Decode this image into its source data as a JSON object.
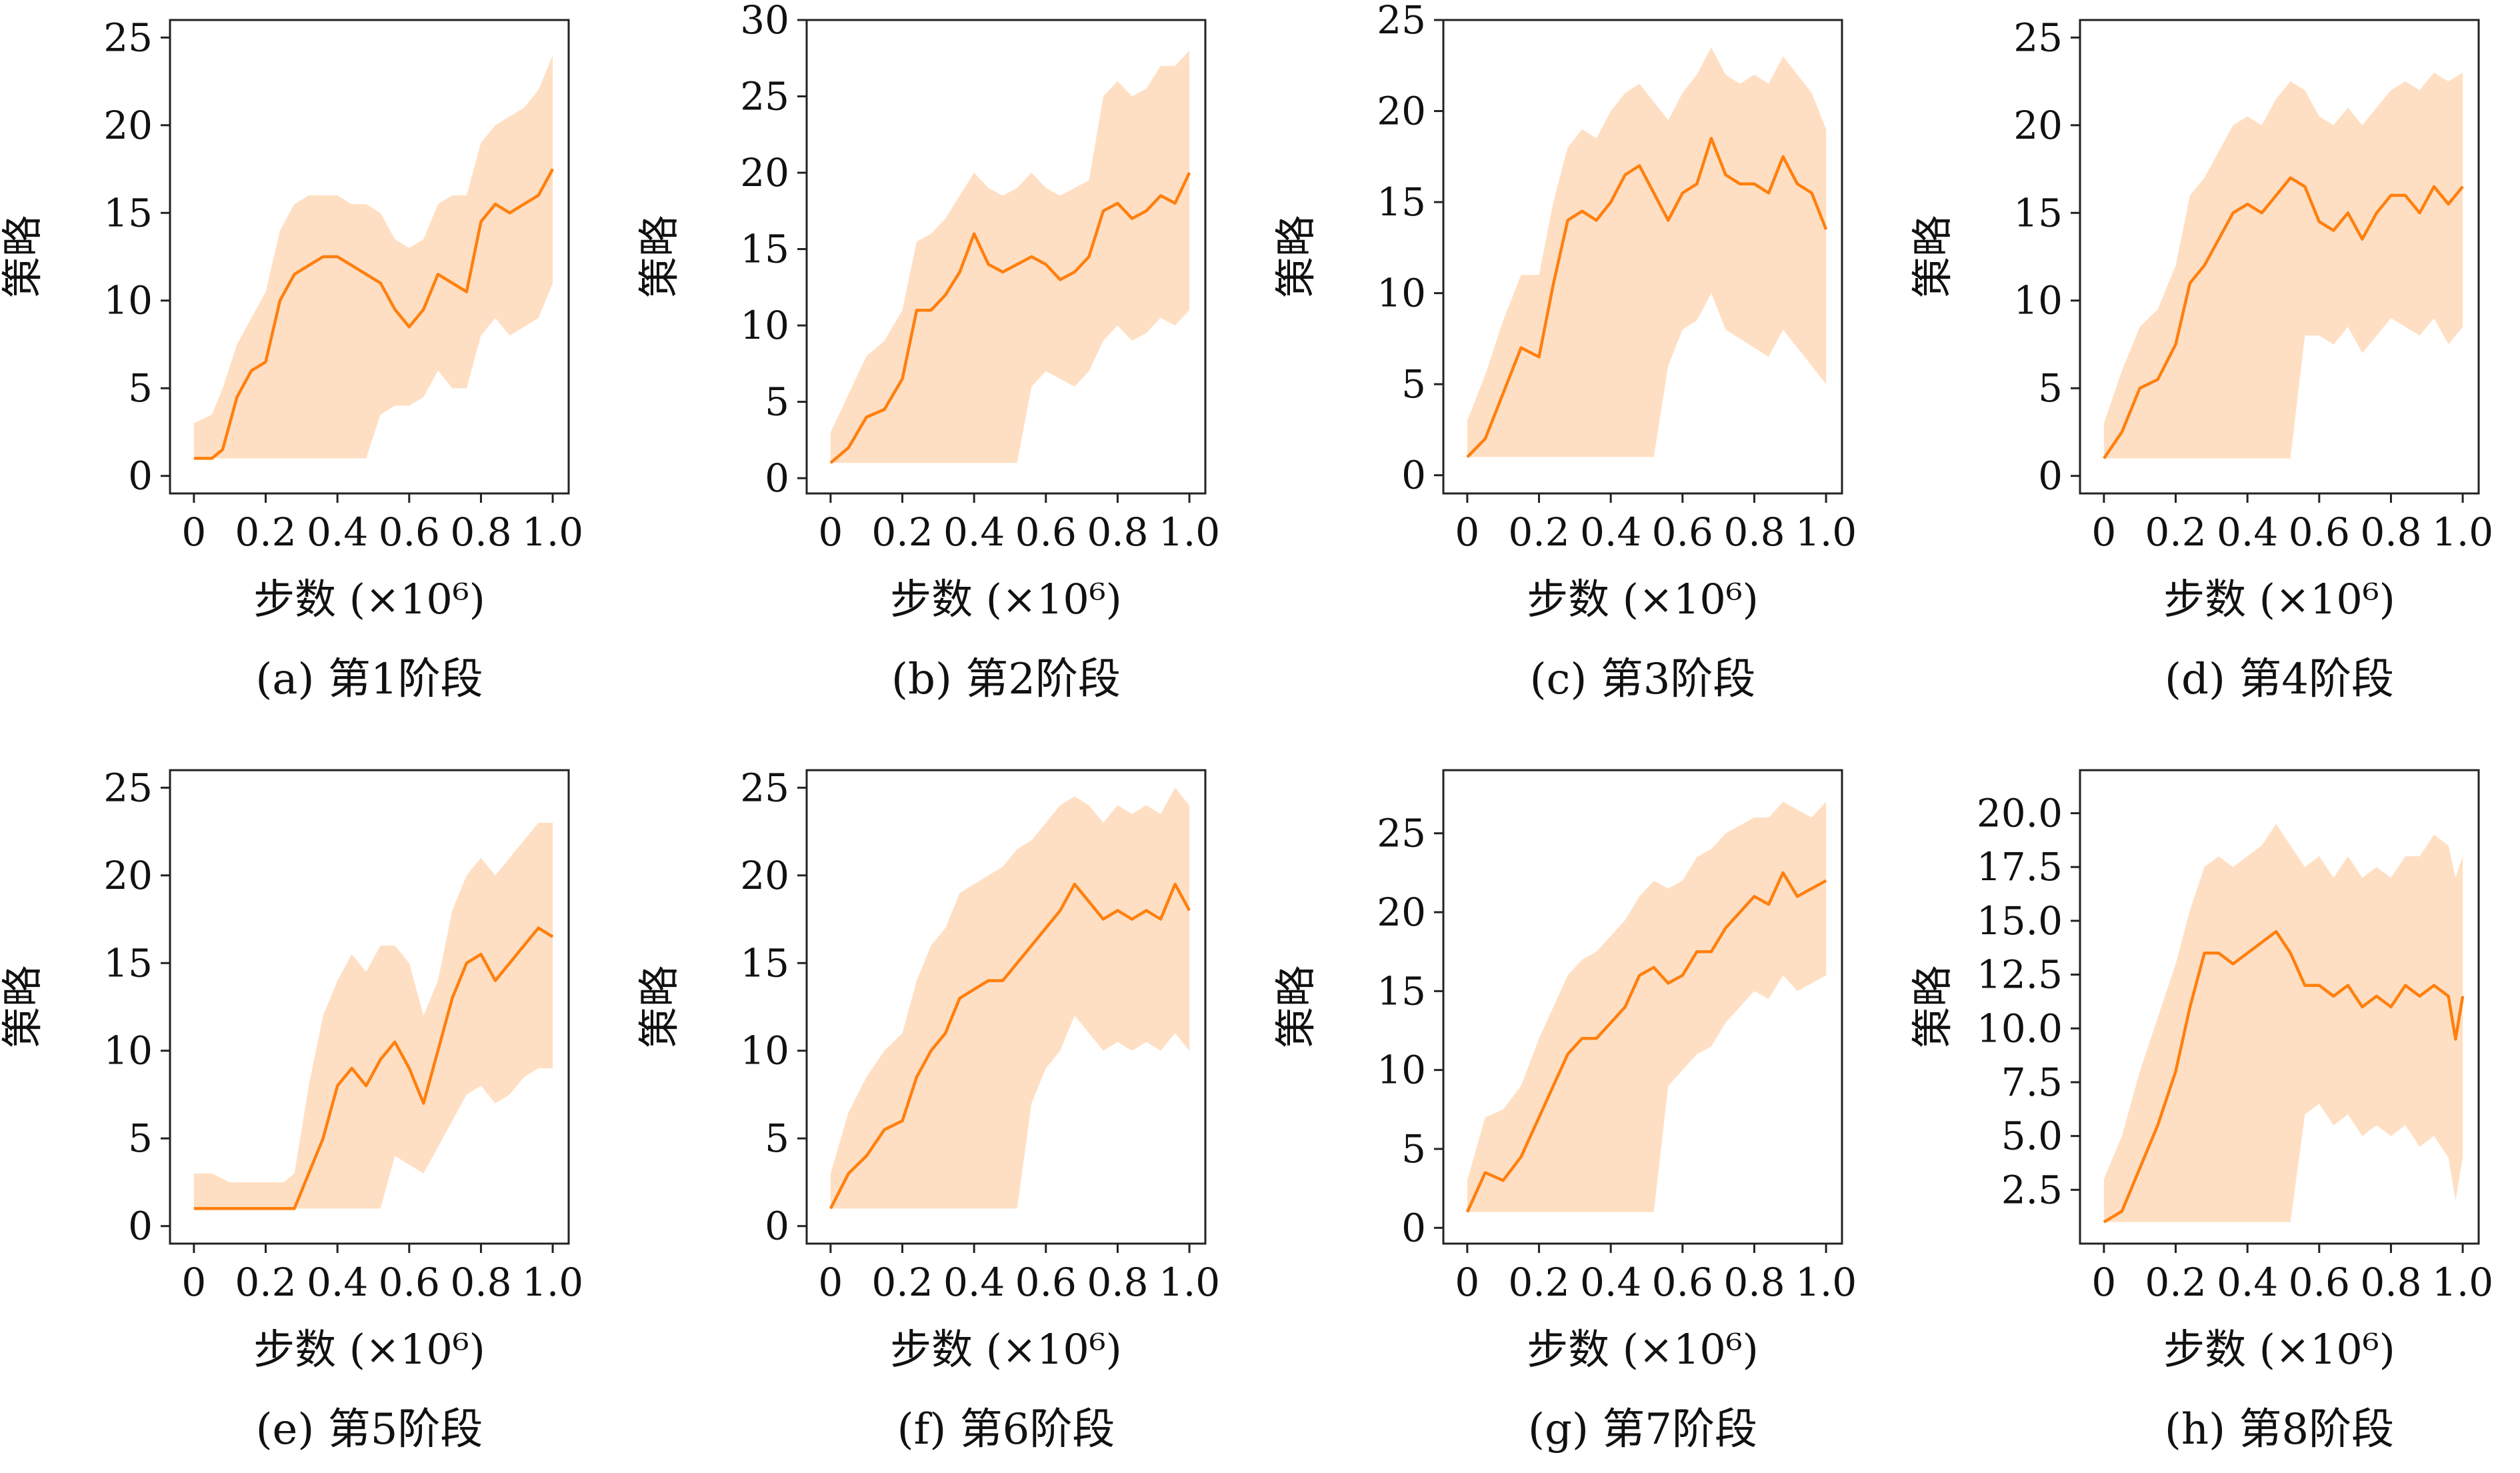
{
  "figure": {
    "accent_color": "#ff7f0e",
    "band_color": "#ffd9b8",
    "panels_per_row": 4
  },
  "chart_data": [
    {
      "type": "line",
      "caption": "(a) 第1阶段",
      "xlabel": "步数 (×10⁶)",
      "ylabel": "策略",
      "xlim": [
        0,
        1.0
      ],
      "ylim": [
        -1,
        26
      ],
      "xticks": [
        "0",
        "0.2",
        "0.4",
        "0.6",
        "0.8",
        "1.0"
      ],
      "yticks": [
        "0",
        "5",
        "10",
        "15",
        "20",
        "25"
      ],
      "series": [
        {
          "x": [
            0,
            0.05,
            0.08,
            0.12,
            0.16,
            0.2,
            0.24,
            0.28,
            0.32,
            0.36,
            0.4,
            0.44,
            0.48,
            0.52,
            0.56,
            0.6,
            0.64,
            0.68,
            0.72,
            0.76,
            0.8,
            0.84,
            0.88,
            0.92,
            0.96,
            1.0
          ],
          "mean": [
            1,
            1,
            1.5,
            4.5,
            6,
            6.5,
            10,
            11.5,
            12,
            12.5,
            12.5,
            12,
            11.5,
            11,
            9.5,
            8.5,
            9.5,
            11.5,
            11,
            10.5,
            14.5,
            15.5,
            15,
            15.5,
            16,
            17.5
          ],
          "upper": [
            3,
            3.5,
            5,
            7.5,
            9,
            10.5,
            14,
            15.5,
            16,
            16,
            16,
            15.5,
            15.5,
            15,
            13.5,
            13,
            13.5,
            15.5,
            16,
            16,
            19,
            20,
            20.5,
            21,
            22,
            24
          ],
          "lower": [
            1,
            1,
            1,
            1,
            1,
            1,
            1,
            1,
            1,
            1,
            1,
            1,
            1,
            3.5,
            4,
            4,
            4.5,
            6,
            5,
            5,
            8,
            9,
            8,
            8.5,
            9,
            11
          ]
        }
      ]
    },
    {
      "type": "line",
      "caption": "(b) 第2阶段",
      "xlabel": "步数 (×10⁶)",
      "ylabel": "策略",
      "xlim": [
        0,
        1.0
      ],
      "ylim": [
        -1,
        30
      ],
      "xticks": [
        "0",
        "0.2",
        "0.4",
        "0.6",
        "0.8",
        "1.0"
      ],
      "yticks": [
        "0",
        "5",
        "10",
        "15",
        "20",
        "25",
        "30"
      ],
      "series": [
        {
          "x": [
            0,
            0.05,
            0.1,
            0.15,
            0.2,
            0.24,
            0.28,
            0.32,
            0.36,
            0.4,
            0.44,
            0.48,
            0.52,
            0.56,
            0.6,
            0.64,
            0.68,
            0.72,
            0.76,
            0.8,
            0.84,
            0.88,
            0.92,
            0.96,
            1.0
          ],
          "mean": [
            1,
            2,
            4,
            4.5,
            6.5,
            11,
            11,
            12,
            13.5,
            16,
            14,
            13.5,
            14,
            14.5,
            14,
            13,
            13.5,
            14.5,
            17.5,
            18,
            17,
            17.5,
            18.5,
            18,
            20
          ],
          "upper": [
            3,
            5.5,
            8,
            9,
            11,
            15.5,
            16,
            17,
            18.5,
            20,
            19,
            18.5,
            19,
            20,
            19,
            18.5,
            19,
            19.5,
            25,
            26,
            25,
            25.5,
            27,
            27,
            28
          ],
          "lower": [
            1,
            1,
            1,
            1,
            1,
            1,
            1,
            1,
            1,
            1,
            1,
            1,
            1,
            6,
            7,
            6.5,
            6,
            7,
            9,
            10,
            9,
            9.5,
            10.5,
            10,
            11
          ]
        }
      ]
    },
    {
      "type": "line",
      "caption": "(c) 第3阶段",
      "xlabel": "步数 (×10⁶)",
      "ylabel": "策略",
      "xlim": [
        0,
        1.0
      ],
      "ylim": [
        -1,
        25
      ],
      "xticks": [
        "0",
        "0.2",
        "0.4",
        "0.6",
        "0.8",
        "1.0"
      ],
      "yticks": [
        "0",
        "5",
        "10",
        "15",
        "20",
        "25"
      ],
      "series": [
        {
          "x": [
            0,
            0.05,
            0.1,
            0.15,
            0.2,
            0.24,
            0.28,
            0.32,
            0.36,
            0.4,
            0.44,
            0.48,
            0.52,
            0.56,
            0.6,
            0.64,
            0.68,
            0.72,
            0.76,
            0.8,
            0.84,
            0.88,
            0.92,
            0.96,
            1.0
          ],
          "mean": [
            1,
            2,
            4.5,
            7,
            6.5,
            10.5,
            14,
            14.5,
            14,
            15,
            16.5,
            17,
            15.5,
            14,
            15.5,
            16,
            18.5,
            16.5,
            16,
            16,
            15.5,
            17.5,
            16,
            15.5,
            13.5
          ],
          "upper": [
            3,
            5.5,
            8.5,
            11,
            11,
            15,
            18,
            19,
            18.5,
            20,
            21,
            21.5,
            20.5,
            19.5,
            21,
            22,
            23.5,
            22,
            21.5,
            22,
            21.5,
            23,
            22,
            21,
            19
          ],
          "lower": [
            1,
            1,
            1,
            1,
            1,
            1,
            1,
            1,
            1,
            1,
            1,
            1,
            1,
            6,
            8,
            8.5,
            10,
            8,
            7.5,
            7,
            6.5,
            8,
            7,
            6,
            5
          ]
        }
      ]
    },
    {
      "type": "line",
      "caption": "(d) 第4阶段",
      "xlabel": "步数 (×10⁶)",
      "ylabel": "策略",
      "xlim": [
        0,
        1.0
      ],
      "ylim": [
        -1,
        26
      ],
      "xticks": [
        "0",
        "0.2",
        "0.4",
        "0.6",
        "0.8",
        "1.0"
      ],
      "yticks": [
        "0",
        "5",
        "10",
        "15",
        "20",
        "25"
      ],
      "series": [
        {
          "x": [
            0,
            0.05,
            0.1,
            0.15,
            0.2,
            0.24,
            0.28,
            0.32,
            0.36,
            0.4,
            0.44,
            0.48,
            0.52,
            0.56,
            0.6,
            0.64,
            0.68,
            0.72,
            0.76,
            0.8,
            0.84,
            0.88,
            0.92,
            0.96,
            1.0
          ],
          "mean": [
            1,
            2.5,
            5,
            5.5,
            7.5,
            11,
            12,
            13.5,
            15,
            15.5,
            15,
            16,
            17,
            16.5,
            14.5,
            14,
            15,
            13.5,
            15,
            16,
            16,
            15,
            16.5,
            15.5,
            16.5
          ],
          "upper": [
            3,
            6,
            8.5,
            9.5,
            12,
            16,
            17,
            18.5,
            20,
            20.5,
            20,
            21.5,
            22.5,
            22,
            20.5,
            20,
            21,
            20,
            21,
            22,
            22.5,
            22,
            23,
            22.5,
            23
          ],
          "lower": [
            1,
            1,
            1,
            1,
            1,
            1,
            1,
            1,
            1,
            1,
            1,
            1,
            1,
            8,
            8,
            7.5,
            8.5,
            7,
            8,
            9,
            8.5,
            8,
            9,
            7.5,
            8.5
          ]
        }
      ]
    },
    {
      "type": "line",
      "caption": "(e) 第5阶段",
      "xlabel": "步数 (×10⁶)",
      "ylabel": "策略",
      "xlim": [
        0,
        1.0
      ],
      "ylim": [
        -1,
        26
      ],
      "xticks": [
        "0",
        "0.2",
        "0.4",
        "0.6",
        "0.8",
        "1.0"
      ],
      "yticks": [
        "0",
        "5",
        "10",
        "15",
        "20",
        "25"
      ],
      "series": [
        {
          "x": [
            0,
            0.05,
            0.1,
            0.15,
            0.2,
            0.25,
            0.28,
            0.32,
            0.36,
            0.4,
            0.44,
            0.48,
            0.52,
            0.56,
            0.6,
            0.64,
            0.68,
            0.72,
            0.76,
            0.8,
            0.84,
            0.88,
            0.92,
            0.96,
            1.0
          ],
          "mean": [
            1,
            1,
            1,
            1,
            1,
            1,
            1,
            3,
            5,
            8,
            9,
            8,
            9.5,
            10.5,
            9,
            7,
            10,
            13,
            15,
            15.5,
            14,
            15,
            16,
            17,
            16.5
          ],
          "upper": [
            3,
            3,
            2.5,
            2.5,
            2.5,
            2.5,
            3,
            8,
            12,
            14,
            15.5,
            14.5,
            16,
            16,
            15,
            12,
            14,
            18,
            20,
            21,
            20,
            21,
            22,
            23,
            23
          ],
          "lower": [
            1,
            1,
            1,
            1,
            1,
            1,
            1,
            1,
            1,
            1,
            1,
            1,
            1,
            4,
            3.5,
            3,
            4.5,
            6,
            7.5,
            8,
            7,
            7.5,
            8.5,
            9,
            9
          ]
        }
      ]
    },
    {
      "type": "line",
      "caption": "(f) 第6阶段",
      "xlabel": "步数 (×10⁶)",
      "ylabel": "策略",
      "xlim": [
        0,
        1.0
      ],
      "ylim": [
        -1,
        26
      ],
      "xticks": [
        "0",
        "0.2",
        "0.4",
        "0.6",
        "0.8",
        "1.0"
      ],
      "yticks": [
        "0",
        "5",
        "10",
        "15",
        "20",
        "25"
      ],
      "series": [
        {
          "x": [
            0,
            0.05,
            0.1,
            0.15,
            0.2,
            0.24,
            0.28,
            0.32,
            0.36,
            0.4,
            0.44,
            0.48,
            0.52,
            0.56,
            0.6,
            0.64,
            0.68,
            0.72,
            0.76,
            0.8,
            0.84,
            0.88,
            0.92,
            0.96,
            1.0
          ],
          "mean": [
            1,
            3,
            4,
            5.5,
            6,
            8.5,
            10,
            11,
            13,
            13.5,
            14,
            14,
            15,
            16,
            17,
            18,
            19.5,
            18.5,
            17.5,
            18,
            17.5,
            18,
            17.5,
            19.5,
            18
          ],
          "upper": [
            3,
            6.5,
            8.5,
            10,
            11,
            14,
            16,
            17,
            19,
            19.5,
            20,
            20.5,
            21.5,
            22,
            23,
            24,
            24.5,
            24,
            23,
            24,
            23.5,
            24,
            23.5,
            25,
            24
          ],
          "lower": [
            1,
            1,
            1,
            1,
            1,
            1,
            1,
            1,
            1,
            1,
            1,
            1,
            1,
            7,
            9,
            10,
            12,
            11,
            10,
            10.5,
            10,
            10.5,
            10,
            11,
            10
          ]
        }
      ]
    },
    {
      "type": "line",
      "caption": "(g) 第7阶段",
      "xlabel": "步数 (×10⁶)",
      "ylabel": "策略",
      "xlim": [
        0,
        1.0
      ],
      "ylim": [
        -1,
        29
      ],
      "xticks": [
        "0",
        "0.2",
        "0.4",
        "0.6",
        "0.8",
        "1.0"
      ],
      "yticks": [
        "0",
        "5",
        "10",
        "15",
        "20",
        "25"
      ],
      "series": [
        {
          "x": [
            0,
            0.05,
            0.1,
            0.15,
            0.2,
            0.24,
            0.28,
            0.32,
            0.36,
            0.4,
            0.44,
            0.48,
            0.52,
            0.56,
            0.6,
            0.64,
            0.68,
            0.72,
            0.76,
            0.8,
            0.84,
            0.88,
            0.92,
            0.96,
            1.0
          ],
          "mean": [
            1,
            3.5,
            3,
            4.5,
            7,
            9,
            11,
            12,
            12,
            13,
            14,
            16,
            16.5,
            15.5,
            16,
            17.5,
            17.5,
            19,
            20,
            21,
            20.5,
            22.5,
            21,
            21.5,
            22
          ],
          "upper": [
            3,
            7,
            7.5,
            9,
            12,
            14,
            16,
            17,
            17.5,
            18.5,
            19.5,
            21,
            22,
            21.5,
            22,
            23.5,
            24,
            25,
            25.5,
            26,
            26,
            27,
            26.5,
            26,
            27
          ],
          "lower": [
            1,
            1,
            1,
            1,
            1,
            1,
            1,
            1,
            1,
            1,
            1,
            1,
            1,
            9,
            10,
            11,
            11.5,
            13,
            14,
            15,
            14.5,
            16,
            15,
            15.5,
            16
          ]
        }
      ]
    },
    {
      "type": "line",
      "caption": "(h) 第8阶段",
      "xlabel": "步数 (×10⁶)",
      "ylabel": "策略",
      "xlim": [
        0,
        1.0
      ],
      "ylim": [
        0,
        22
      ],
      "xticks": [
        "0",
        "0.2",
        "0.4",
        "0.6",
        "0.8",
        "1.0"
      ],
      "yticks": [
        "2.5",
        "5.0",
        "7.5",
        "10.0",
        "12.5",
        "15.0",
        "17.5",
        "20.0"
      ],
      "series": [
        {
          "x": [
            0,
            0.05,
            0.1,
            0.15,
            0.2,
            0.24,
            0.28,
            0.32,
            0.36,
            0.4,
            0.44,
            0.48,
            0.52,
            0.56,
            0.6,
            0.64,
            0.68,
            0.72,
            0.76,
            0.8,
            0.84,
            0.88,
            0.92,
            0.96,
            0.98,
            1.0
          ],
          "mean": [
            1,
            1.5,
            3.5,
            5.5,
            8,
            11,
            13.5,
            13.5,
            13,
            13.5,
            14,
            14.5,
            13.5,
            12,
            12,
            11.5,
            12,
            11,
            11.5,
            11,
            12,
            11.5,
            12,
            11.5,
            9.5,
            11.5
          ],
          "upper": [
            3,
            5,
            8,
            10.5,
            13,
            15.5,
            17.5,
            18,
            17.5,
            18,
            18.5,
            19.5,
            18.5,
            17.5,
            18,
            17,
            18,
            17,
            17.5,
            17,
            18,
            18,
            19,
            18.5,
            17,
            18
          ],
          "lower": [
            1,
            1,
            1,
            1,
            1,
            1,
            1,
            1,
            1,
            1,
            1,
            1,
            1,
            6,
            6.5,
            5.5,
            6,
            5,
            5.5,
            5,
            5.5,
            4.5,
            5,
            4,
            2,
            4
          ]
        }
      ]
    }
  ]
}
